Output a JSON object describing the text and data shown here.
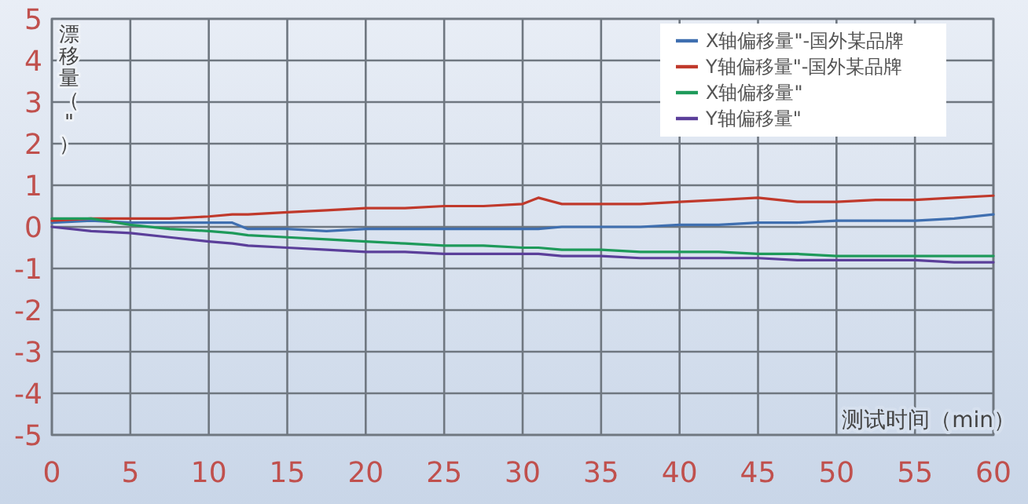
{
  "chart_data": {
    "type": "line",
    "ylabel": "漂移量（\"）",
    "xlabel": "测试时间（min）",
    "x": [
      0,
      2.5,
      5,
      7.5,
      10,
      11.5,
      12.5,
      15,
      17.5,
      20,
      22.5,
      25,
      27.5,
      30,
      31,
      32.5,
      35,
      37.5,
      40,
      42.5,
      45,
      47.5,
      50,
      52.5,
      55,
      57.5,
      60
    ],
    "series": [
      {
        "name": "X轴偏移量\"-国外某品牌",
        "color": "#3f6fb0",
        "values": [
          0.1,
          0.15,
          0.1,
          0.1,
          0.1,
          0.1,
          -0.05,
          -0.05,
          -0.1,
          -0.05,
          -0.05,
          -0.05,
          -0.05,
          -0.05,
          -0.05,
          0.0,
          0.0,
          0.0,
          0.05,
          0.05,
          0.1,
          0.1,
          0.15,
          0.15,
          0.15,
          0.2,
          0.3
        ]
      },
      {
        "name": "Y轴偏移量\"-国外某品牌",
        "color": "#c0392b",
        "values": [
          0.15,
          0.2,
          0.2,
          0.2,
          0.25,
          0.3,
          0.3,
          0.35,
          0.4,
          0.45,
          0.45,
          0.5,
          0.5,
          0.55,
          0.7,
          0.55,
          0.55,
          0.55,
          0.6,
          0.65,
          0.7,
          0.6,
          0.6,
          0.65,
          0.65,
          0.7,
          0.75
        ]
      },
      {
        "name": "X轴偏移量\"",
        "color": "#1e9a5a",
        "values": [
          0.2,
          0.2,
          0.05,
          -0.05,
          -0.1,
          -0.15,
          -0.2,
          -0.25,
          -0.3,
          -0.35,
          -0.4,
          -0.45,
          -0.45,
          -0.5,
          -0.5,
          -0.55,
          -0.55,
          -0.6,
          -0.6,
          -0.6,
          -0.65,
          -0.65,
          -0.7,
          -0.7,
          -0.7,
          -0.7,
          -0.7
        ]
      },
      {
        "name": "Y轴偏移量\"",
        "color": "#5b3f9a",
        "values": [
          0.0,
          -0.1,
          -0.15,
          -0.25,
          -0.35,
          -0.4,
          -0.45,
          -0.5,
          -0.55,
          -0.6,
          -0.6,
          -0.65,
          -0.65,
          -0.65,
          -0.65,
          -0.7,
          -0.7,
          -0.75,
          -0.75,
          -0.75,
          -0.75,
          -0.8,
          -0.8,
          -0.8,
          -0.8,
          -0.85,
          -0.85
        ]
      }
    ],
    "xlim": [
      0,
      60
    ],
    "xticks": [
      0,
      5,
      10,
      15,
      20,
      25,
      30,
      35,
      40,
      45,
      50,
      55,
      60
    ],
    "ylim": [
      -5,
      5
    ],
    "yticks": [
      -5,
      -4,
      -3,
      -2,
      -1,
      0,
      1,
      2,
      3,
      4,
      5
    ],
    "grid": true,
    "legend": "top right",
    "marker": "none",
    "line_style": "solid"
  }
}
